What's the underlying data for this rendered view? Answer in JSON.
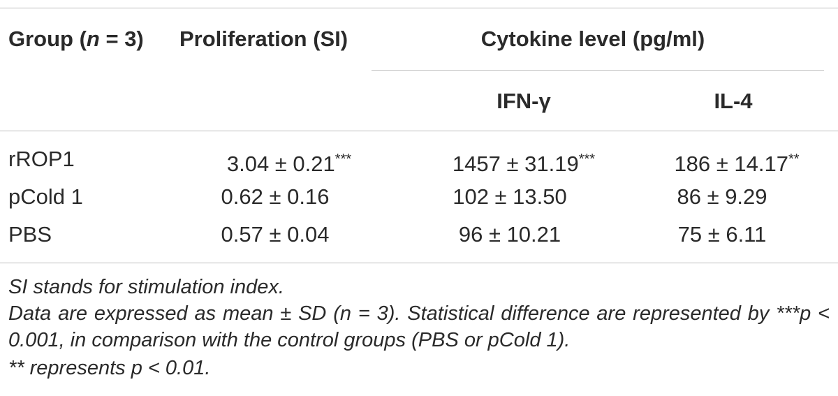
{
  "table": {
    "headers": {
      "group_prefix": "Group (",
      "group_n": "n",
      "group_suffix": " = 3)",
      "proliferation": "Proliferation (SI)",
      "cytokine": "Cytokine level (pg/ml)",
      "ifn": "IFN-γ",
      "il4": "IL-4"
    },
    "rows": [
      {
        "group": "rROP1",
        "proliferation": "3.04 ± 0.21",
        "proliferation_sig": "***",
        "ifn": "1457 ± 31.19",
        "ifn_sig": "***",
        "il4": "186 ± 14.17",
        "il4_sig": "**"
      },
      {
        "group": "pCold 1",
        "proliferation": "0.62 ± 0.16",
        "proliferation_sig": "",
        "ifn": "102 ± 13.50",
        "ifn_sig": "",
        "il4": "86 ± 9.29",
        "il4_sig": ""
      },
      {
        "group": "PBS",
        "proliferation": "0.57 ± 0.04",
        "proliferation_sig": "",
        "ifn": "96 ± 10.21",
        "ifn_sig": "",
        "il4": "75 ± 6.11",
        "il4_sig": ""
      }
    ]
  },
  "footnotes": {
    "line1": "SI stands for stimulation index.",
    "line2": "Data are expressed as mean ± SD (n = 3). Statistical difference are represented by ***p < 0.001, in comparison with the control groups (PBS or pCold 1).",
    "line3": "** represents p < 0.01."
  }
}
